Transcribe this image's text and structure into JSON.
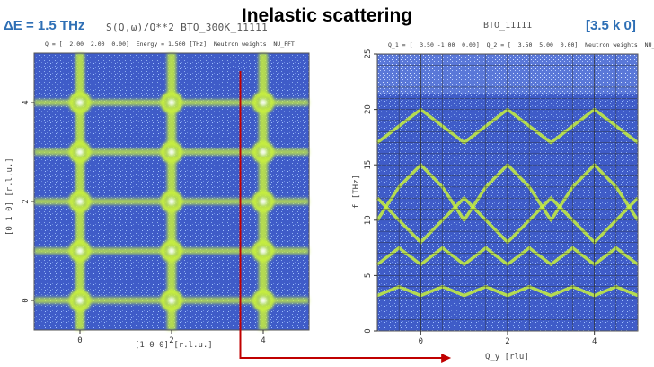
{
  "title": "Inelastic scattering",
  "energy_label": "ΔE = 1.5 THz",
  "wavevector_label": "[3.5 k 0]",
  "colors": {
    "accent": "#2e6fb5",
    "arrow": "#c00000",
    "map_background": "#3f5cc8",
    "map_feature": "#c8f03c"
  },
  "chart_data": [
    {
      "type": "heatmap",
      "header": "S(Q,ω)/Q**2  BTO_300K_11111",
      "subtitle": "Q = [  2.00  2.00  0.00]  Energy = 1.500 [THz]  Neutron weights  NU_FFT",
      "xlabel": "[1 0 0] [r.l.u.]",
      "ylabel": "[0 1 0] [r.l.u.]",
      "xlim": [
        -1,
        5
      ],
      "ylim": [
        -0.6,
        5.0
      ],
      "x_ticks": [
        0,
        2,
        4
      ],
      "y_ticks": [
        0,
        2,
        4
      ],
      "grid_lines_x": [
        0,
        2,
        4
      ],
      "grid_lines_y": [
        0,
        1,
        2,
        3,
        4
      ],
      "bright_spots": [
        {
          "x": 0,
          "y": 4
        },
        {
          "x": 2,
          "y": 4
        },
        {
          "x": 4,
          "y": 4
        },
        {
          "x": 0,
          "y": 3
        },
        {
          "x": 2,
          "y": 3
        },
        {
          "x": 4,
          "y": 3
        },
        {
          "x": 0,
          "y": 2
        },
        {
          "x": 2,
          "y": 2
        },
        {
          "x": 4,
          "y": 2
        },
        {
          "x": 0,
          "y": 1
        },
        {
          "x": 2,
          "y": 1
        },
        {
          "x": 4,
          "y": 1
        },
        {
          "x": 0,
          "y": 0
        },
        {
          "x": 2,
          "y": 0
        },
        {
          "x": 4,
          "y": 0
        }
      ]
    },
    {
      "type": "heatmap",
      "header": "BTO_11111",
      "subtitle": "Q_1 = [  3.50 -1.00  0.00]  Q_2 = [  3.50  5.00  0.00]  Neutron weights  NU_FFT",
      "xlabel": "Q_y [rlu]",
      "ylabel": "f [THz]",
      "xlim": [
        -1,
        5
      ],
      "ylim": [
        0,
        25
      ],
      "x_ticks": [
        0,
        2,
        4
      ],
      "y_ticks": [
        0,
        5,
        10,
        15,
        20,
        25
      ],
      "grid_lines_x": [
        0,
        2,
        4
      ],
      "dispersion_branches": [
        {
          "x": [
            -1,
            -0.5,
            0,
            0.5,
            1,
            1.5,
            2,
            2.5,
            3,
            3.5,
            4,
            4.5,
            5
          ],
          "y": [
            3.2,
            4.0,
            3.2,
            4.0,
            3.2,
            4.0,
            3.2,
            4.0,
            3.2,
            4.0,
            3.2,
            4.0,
            3.2
          ]
        },
        {
          "x": [
            -1,
            -0.5,
            0,
            0.5,
            1,
            1.5,
            2,
            2.5,
            3,
            3.5,
            4,
            4.5,
            5
          ],
          "y": [
            6,
            7.5,
            6,
            7.5,
            6,
            7.5,
            6,
            7.5,
            6,
            7.5,
            6,
            7.5,
            6
          ]
        },
        {
          "x": [
            -1,
            -0.5,
            0,
            0.5,
            1,
            1.5,
            2,
            2.5,
            3,
            3.5,
            4,
            4.5,
            5
          ],
          "y": [
            12,
            10,
            8,
            10,
            12,
            10,
            8,
            10,
            12,
            10,
            8,
            10,
            12
          ]
        },
        {
          "x": [
            -1,
            -0.5,
            0,
            0.5,
            1,
            1.5,
            2,
            2.5,
            3,
            3.5,
            4,
            4.5,
            5
          ],
          "y": [
            10,
            13,
            15,
            13,
            10,
            13,
            15,
            13,
            10,
            13,
            15,
            13,
            10
          ]
        },
        {
          "x": [
            -1,
            -0.5,
            0,
            0.5,
            1,
            1.5,
            2,
            2.5,
            3,
            3.5,
            4,
            4.5,
            5
          ],
          "y": [
            17,
            18.5,
            20,
            18.5,
            17,
            18.5,
            20,
            18.5,
            17,
            18.5,
            20,
            18.5,
            17
          ]
        }
      ],
      "slice_x_in_left_map": 3.5
    }
  ]
}
